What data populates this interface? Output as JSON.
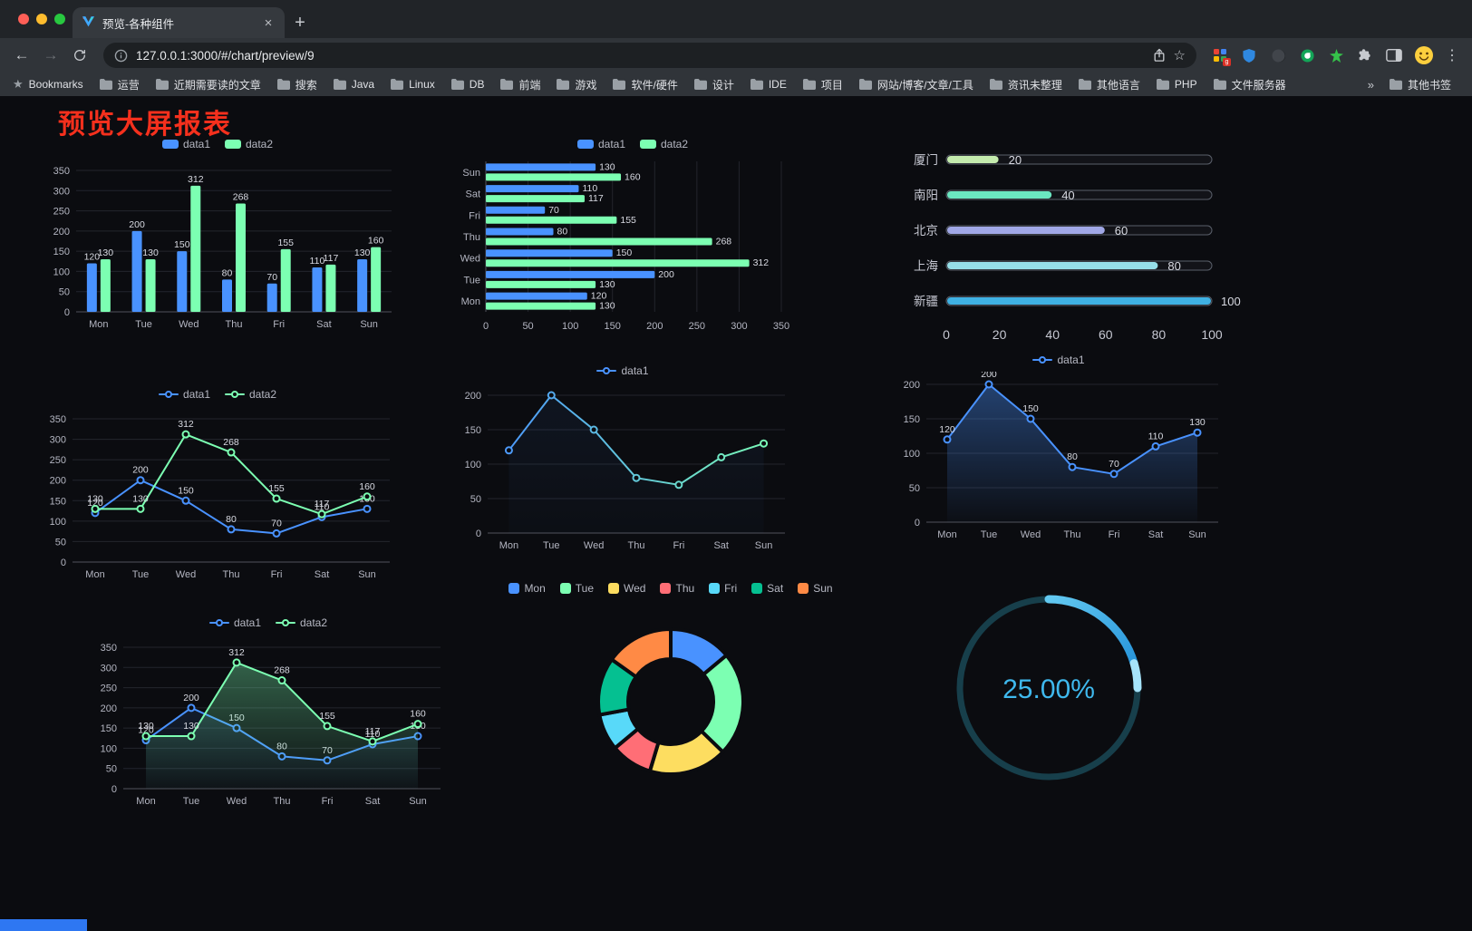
{
  "browser": {
    "tab_title": "预览-各种组件",
    "url": "127.0.0.1:3000/#/chart/preview/9",
    "icons": {
      "back": "←",
      "forward": "→",
      "close": "×",
      "plus": "+",
      "star": "☆",
      "bookmarks_star": "★",
      "menu": "⋮",
      "ext_badge": "g"
    },
    "bookmarks_bar": {
      "first_item": "Bookmarks",
      "folders": [
        "运营",
        "近期需要读的文章",
        "搜索",
        "Java",
        "Linux",
        "DB",
        "前端",
        "游戏",
        "软件/硬件",
        "设计",
        "IDE",
        "项目",
        "网站/博客/文章/工具",
        "资讯未整理",
        "其他语言",
        "PHP",
        "文件服务器"
      ],
      "overflow_chevron": "»",
      "other_bookmarks": "其他书签"
    }
  },
  "page": {
    "title": "预览大屏报表"
  },
  "chart_data": [
    {
      "id": "bar-grouped",
      "type": "bar",
      "categories": [
        "Mon",
        "Tue",
        "Wed",
        "Thu",
        "Fri",
        "Sat",
        "Sun"
      ],
      "series": [
        {
          "name": "data1",
          "color": "#4992ff",
          "values": [
            120,
            200,
            150,
            80,
            70,
            110,
            130
          ]
        },
        {
          "name": "data2",
          "color": "#7cffb2",
          "values": [
            130,
            130,
            312,
            268,
            155,
            117,
            160
          ]
        }
      ],
      "ylim": [
        0,
        350
      ],
      "ytick": 50,
      "labels": true,
      "legend_position": "top",
      "grid": true
    },
    {
      "id": "bar-horizontal",
      "type": "hbar",
      "categories": [
        "Mon",
        "Tue",
        "Wed",
        "Thu",
        "Fri",
        "Sat",
        "Sun"
      ],
      "series": [
        {
          "name": "data1",
          "color": "#4992ff",
          "values": [
            120,
            200,
            150,
            80,
            70,
            110,
            130
          ]
        },
        {
          "name": "data2",
          "color": "#7cffb2",
          "values": [
            130,
            130,
            312,
            268,
            155,
            117,
            160
          ]
        }
      ],
      "xlim": [
        0,
        350
      ],
      "xtick": 50,
      "labels": true,
      "legend_position": "top",
      "grid": true
    },
    {
      "id": "progress-list",
      "type": "progress",
      "items": [
        {
          "label": "厦门",
          "value": 20,
          "color": "#c4ebad"
        },
        {
          "label": "南阳",
          "value": 40,
          "color": "#6be6c1"
        },
        {
          "label": "北京",
          "value": 60,
          "color": "#a0a7e6"
        },
        {
          "label": "上海",
          "value": 80,
          "color": "#96dee8"
        },
        {
          "label": "新疆",
          "value": 100,
          "color": "#3fb1e3"
        }
      ],
      "xlim": [
        0,
        100
      ],
      "xticks": [
        0,
        20,
        40,
        60,
        80,
        100
      ]
    },
    {
      "id": "line-dual",
      "type": "line",
      "categories": [
        "Mon",
        "Tue",
        "Wed",
        "Thu",
        "Fri",
        "Sat",
        "Sun"
      ],
      "series": [
        {
          "name": "data1",
          "color": "#4992ff",
          "values": [
            120,
            200,
            150,
            80,
            70,
            110,
            130
          ]
        },
        {
          "name": "data2",
          "color": "#7cffb2",
          "values": [
            130,
            130,
            312,
            268,
            155,
            117,
            160
          ]
        }
      ],
      "ylim": [
        0,
        350
      ],
      "ytick": 50,
      "labels": true,
      "legend_position": "top",
      "grid": true
    },
    {
      "id": "line-gradient",
      "type": "line",
      "categories": [
        "Mon",
        "Tue",
        "Wed",
        "Thu",
        "Fri",
        "Sat",
        "Sun"
      ],
      "series": [
        {
          "name": "data1",
          "gradient": [
            "#4992ff",
            "#7cffb2"
          ],
          "values": [
            120,
            200,
            150,
            80,
            70,
            110,
            130
          ],
          "area": true,
          "area_opacity": 0.07
        }
      ],
      "ylim": [
        0,
        200
      ],
      "ytick": 50,
      "labels": false,
      "legend_position": "top",
      "grid": true
    },
    {
      "id": "area-single",
      "type": "area",
      "categories": [
        "Mon",
        "Tue",
        "Wed",
        "Thu",
        "Fri",
        "Sat",
        "Sun"
      ],
      "series": [
        {
          "name": "data1",
          "color": "#4992ff",
          "values": [
            120,
            200,
            150,
            80,
            70,
            110,
            130
          ],
          "area_opacity": 0.4
        }
      ],
      "ylim": [
        0,
        200
      ],
      "ytick": 50,
      "labels": true,
      "legend_position": "top",
      "grid": true
    },
    {
      "id": "area-dual",
      "type": "area",
      "categories": [
        "Mon",
        "Tue",
        "Wed",
        "Thu",
        "Fri",
        "Sat",
        "Sun"
      ],
      "series": [
        {
          "name": "data1",
          "color": "#4992ff",
          "values": [
            120,
            200,
            150,
            80,
            70,
            110,
            130
          ],
          "area_opacity": 0.12
        },
        {
          "name": "data2",
          "color": "#7cffb2",
          "values": [
            130,
            130,
            312,
            268,
            155,
            117,
            160
          ],
          "area_opacity": 0.35
        }
      ],
      "ylim": [
        0,
        350
      ],
      "ytick": 50,
      "labels": true,
      "legend_position": "top",
      "grid": true
    },
    {
      "id": "donut",
      "type": "pie",
      "categories": [
        "Mon",
        "Tue",
        "Wed",
        "Thu",
        "Fri",
        "Sat",
        "Sun"
      ],
      "values": [
        120,
        200,
        150,
        80,
        70,
        110,
        130
      ],
      "colors": [
        "#4992ff",
        "#7cffb2",
        "#fddd60",
        "#ff6e76",
        "#58d9f9",
        "#05c091",
        "#ff8a45"
      ],
      "outer_radius": 80,
      "inner_radius": 47,
      "legend_position": "top"
    },
    {
      "id": "gauge",
      "type": "gauge",
      "value": 25,
      "label": "25.00%",
      "radius": 98,
      "track_color": "#173f4b",
      "arc_colors": [
        "#63c9f1",
        "#1d8bd6"
      ],
      "tip_color": "#a6e3fa",
      "text_color": "#3fb9ee"
    }
  ]
}
